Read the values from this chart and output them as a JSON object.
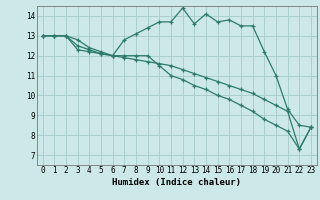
{
  "title": "",
  "xlabel": "Humidex (Indice chaleur)",
  "ylabel": "",
  "bg_color": "#cce8e8",
  "line_color": "#2e7b6e",
  "grid_color": "#aacece",
  "xlim": [
    -0.5,
    23.5
  ],
  "ylim": [
    6.5,
    14.5
  ],
  "xticks": [
    0,
    1,
    2,
    3,
    4,
    5,
    6,
    7,
    8,
    9,
    10,
    11,
    12,
    13,
    14,
    15,
    16,
    17,
    18,
    19,
    20,
    21,
    22,
    23
  ],
  "yticks": [
    7,
    8,
    9,
    10,
    11,
    12,
    13,
    14
  ],
  "series": [
    [
      13.0,
      13.0,
      13.0,
      12.8,
      12.4,
      12.2,
      12.0,
      12.8,
      13.1,
      13.4,
      13.7,
      13.7,
      14.4,
      13.6,
      14.1,
      13.7,
      13.8,
      13.5,
      13.5,
      12.2,
      11.0,
      9.3,
      8.5,
      8.4
    ],
    [
      13.0,
      13.0,
      13.0,
      12.5,
      12.3,
      12.1,
      12.0,
      12.0,
      12.0,
      12.0,
      11.5,
      11.0,
      10.8,
      10.5,
      10.3,
      10.0,
      9.8,
      9.5,
      9.2,
      8.8,
      8.5,
      8.2,
      7.3,
      8.4
    ],
    [
      13.0,
      13.0,
      13.0,
      12.3,
      12.2,
      12.1,
      12.0,
      11.9,
      11.8,
      11.7,
      11.6,
      11.5,
      11.3,
      11.1,
      10.9,
      10.7,
      10.5,
      10.3,
      10.1,
      9.8,
      9.5,
      9.2,
      7.3,
      8.4
    ]
  ],
  "tick_fontsize": 5.5,
  "label_fontsize": 6.5
}
